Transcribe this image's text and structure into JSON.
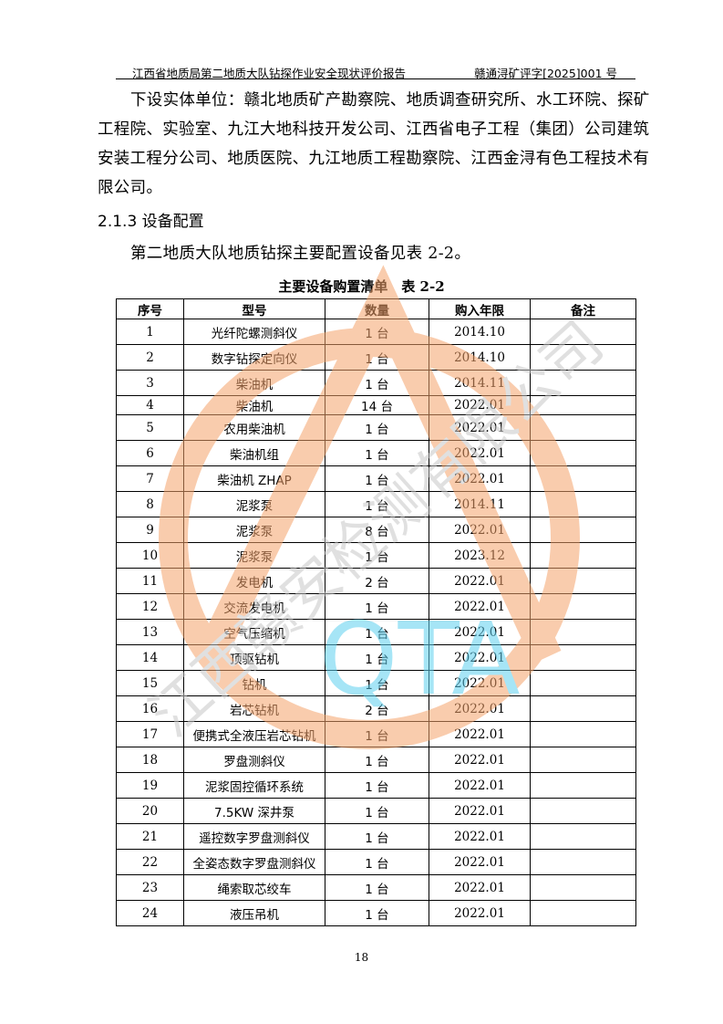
{
  "header": {
    "left": "江西省地质局第二地质大队钻探作业安全现状评价报告",
    "right": "赣通浔矿评字[2025]001 号"
  },
  "paragraph1": "下设实体单位：赣北地质矿产勘察院、地质调查研究所、水工环院、探矿工程院、实验室、九江大地科技开发公司、江西省电子工程（集团）公司建筑安装工程分公司、地质医院、九江地质工程勘察院、江西金浔有色工程技术有限公司。",
  "section_heading": "2.1.3 设备配置",
  "paragraph2": "第二地质大队地质钻探主要配置设备见表 2-2。",
  "table_caption": "主要设备购置清单　表 2-2",
  "table": {
    "headers": [
      "序号",
      "型号",
      "数量",
      "购入年限",
      "备注"
    ],
    "rows": [
      [
        "1",
        "光纤陀螺测斜仪",
        "1 台",
        "2014.10",
        ""
      ],
      [
        "2",
        "数字钻探定向仪",
        "1 台",
        "2014.10",
        ""
      ],
      [
        "3",
        "柴油机",
        "1 台",
        "2014.11",
        ""
      ],
      [
        "4",
        "柴油机",
        "14 台",
        "2022.01",
        ""
      ],
      [
        "5",
        "农用柴油机",
        "1 台",
        "2022.01",
        ""
      ],
      [
        "6",
        "柴油机组",
        "1 台",
        "2022.01",
        ""
      ],
      [
        "7",
        "柴油机 ZHAP",
        "1 台",
        "2022.01",
        ""
      ],
      [
        "8",
        "泥浆泵",
        "1 台",
        "2014.11",
        ""
      ],
      [
        "9",
        "泥浆泵",
        "8 台",
        "2022.01",
        ""
      ],
      [
        "10",
        "泥浆泵",
        "1 台",
        "2023.12",
        ""
      ],
      [
        "11",
        "发电机",
        "2 台",
        "2022.01",
        ""
      ],
      [
        "12",
        "交流发电机",
        "1 台",
        "2022.01",
        ""
      ],
      [
        "13",
        "空气压缩机",
        "1 台",
        "2022.01",
        ""
      ],
      [
        "14",
        "顶驱钻机",
        "1 台",
        "2022.01",
        ""
      ],
      [
        "15",
        "钻机",
        "1 台",
        "2022.01",
        ""
      ],
      [
        "16",
        "岩芯钻机",
        "2 台",
        "2022.01",
        ""
      ],
      [
        "17",
        "便携式全液压岩芯钻机",
        "1 台",
        "2022.01",
        ""
      ],
      [
        "18",
        "罗盘测斜仪",
        "1 台",
        "2022.01",
        ""
      ],
      [
        "19",
        "泥浆固控循环系统",
        "1 台",
        "2022.01",
        ""
      ],
      [
        "20",
        "7.5KW 深井泵",
        "1 台",
        "2022.01",
        ""
      ],
      [
        "21",
        "遥控数字罗盘测斜仪",
        "1 台",
        "2022.01",
        ""
      ],
      [
        "22",
        "全姿态数字罗盘测斜仪",
        "1 台",
        "2022.01",
        ""
      ],
      [
        "23",
        "绳索取芯绞车",
        "1 台",
        "2022.01",
        ""
      ],
      [
        "24",
        "液压吊机",
        "1 台",
        "2022.01",
        ""
      ]
    ]
  },
  "page_number": "18",
  "watermark": {
    "text": "江西赣安检测有限公司",
    "logo": "QTA",
    "colors": {
      "orange": "#f5a36b",
      "cyan": "#5fd0f0",
      "gray": "#c8c8c8"
    }
  }
}
